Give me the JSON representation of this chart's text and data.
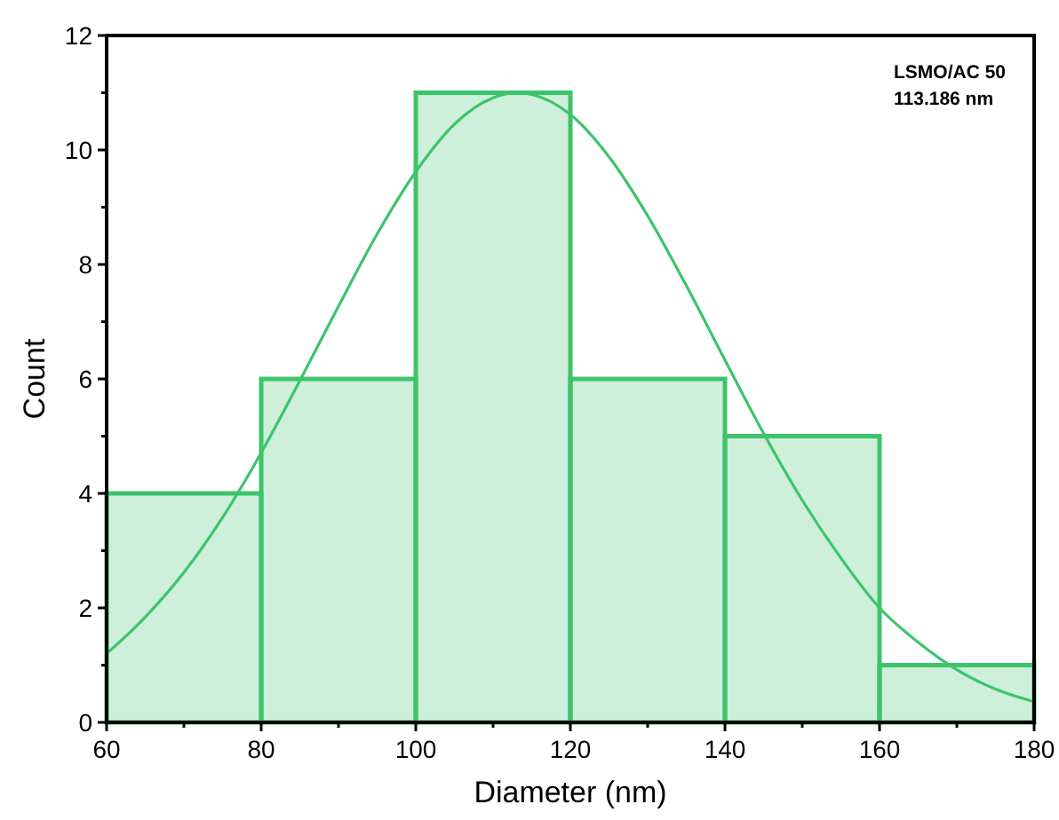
{
  "chart_data": {
    "type": "histogram",
    "xlabel": "Diameter (nm)",
    "ylabel": "Count",
    "bins": [
      60,
      80,
      100,
      120,
      140,
      160,
      180
    ],
    "values": [
      4,
      6,
      11,
      6,
      5,
      1
    ],
    "color": "#3dc46b",
    "series": [
      {
        "type": "line",
        "color": "#3dc46b",
        "x": [
          60,
          65,
          70,
          75,
          80,
          85,
          90,
          95,
          100,
          105,
          110,
          113.186,
          115,
          120,
          125,
          130,
          135,
          140,
          145,
          150,
          155,
          160,
          165,
          170,
          175,
          180
        ],
        "values": [
          1.2,
          1.84,
          2.62,
          3.58,
          4.71,
          5.97,
          7.27,
          8.53,
          9.62,
          10.45,
          10.91,
          11,
          10.97,
          10.62,
          9.88,
          8.85,
          7.63,
          6.33,
          5.05,
          3.88,
          2.87,
          2.0,
          1.4,
          0.92,
          0.58,
          0.36
        ]
      }
    ],
    "xlim": [
      60,
      180
    ],
    "xticks": [
      60,
      {
        "value": 70,
        "label": null
      },
      80,
      {
        "value": 90,
        "label": null
      },
      100,
      {
        "value": 110,
        "label": null
      },
      120,
      {
        "value": 130,
        "label": null
      },
      140,
      {
        "value": 150,
        "label": null
      },
      160,
      {
        "value": 170,
        "label": null
      },
      180
    ],
    "ylim": [
      0,
      12
    ],
    "yticks": [
      0,
      {
        "value": 1,
        "label": null
      },
      2,
      {
        "value": 3,
        "label": null
      },
      4,
      {
        "value": 5,
        "label": null
      },
      6,
      {
        "value": 7,
        "label": null
      },
      8,
      {
        "value": 9,
        "label": null
      },
      10,
      {
        "value": 11,
        "label": null
      },
      12
    ],
    "annotations": [
      "LSMO/AC 50",
      "113.186 nm"
    ]
  }
}
